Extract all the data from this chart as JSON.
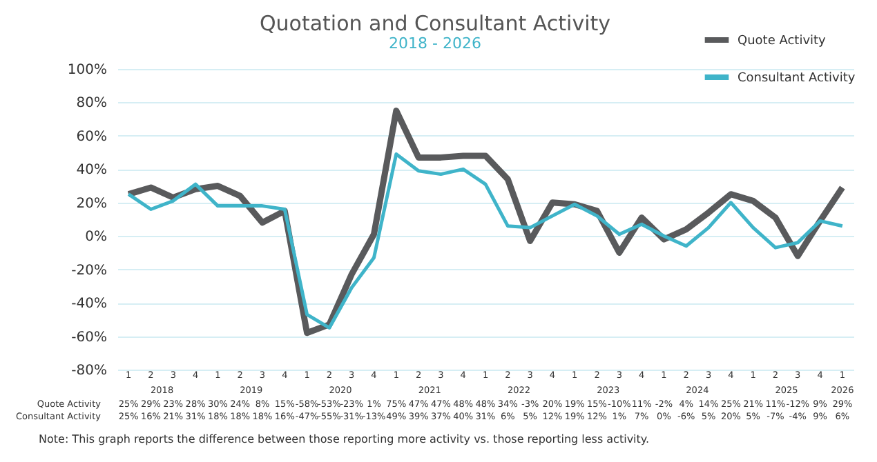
{
  "chart_data": {
    "type": "line",
    "title": "Quotation and Consultant Activity",
    "subtitle": "2018 - 2026",
    "categories": [
      "1",
      "2",
      "3",
      "4",
      "1",
      "2",
      "3",
      "4",
      "1",
      "2",
      "3",
      "4",
      "1",
      "2",
      "3",
      "4",
      "1",
      "2",
      "3",
      "4",
      "1",
      "2",
      "3",
      "4",
      "1",
      "2",
      "3",
      "4",
      "1",
      "2",
      "3",
      "4",
      "1"
    ],
    "series": [
      {
        "name": "Quote Activity",
        "color": "#595a5c",
        "values": [
          25,
          29,
          23,
          28,
          30,
          24,
          8,
          15,
          -58,
          -53,
          -23,
          1,
          75,
          47,
          47,
          48,
          48,
          34,
          -3,
          20,
          19,
          15,
          -10,
          11,
          -2,
          4,
          14,
          25,
          21,
          11,
          -12,
          9,
          29
        ],
        "value_labels": [
          "25%",
          "29%",
          "23%",
          "28%",
          "30%",
          "24%",
          "8%",
          "15%",
          "-58%",
          "-53%",
          "-23%",
          "1%",
          "75%",
          "47%",
          "47%",
          "48%",
          "48%",
          "34%",
          "-3%",
          "20%",
          "19%",
          "15%",
          "-10%",
          "11%",
          "-2%",
          "4%",
          "14%",
          "25%",
          "21%",
          "11%",
          "-12%",
          "9%",
          "29%"
        ]
      },
      {
        "name": "Consultant Activity",
        "color": "#3fb4c9",
        "values": [
          25,
          16,
          21,
          31,
          18,
          18,
          18,
          16,
          -47,
          -55,
          -31,
          -13,
          49,
          39,
          37,
          40,
          31,
          6,
          5,
          12,
          19,
          12,
          1,
          7,
          0,
          -6,
          5,
          20,
          5,
          -7,
          -4,
          9,
          6
        ],
        "value_labels": [
          "25%",
          "16%",
          "21%",
          "31%",
          "18%",
          "18%",
          "18%",
          "16%",
          "-47%",
          "-55%",
          "-31%",
          "-13%",
          "49%",
          "39%",
          "37%",
          "40%",
          "31%",
          "6%",
          "5%",
          "12%",
          "19%",
          "12%",
          "1%",
          "7%",
          "0%",
          "-6%",
          "5%",
          "20%",
          "5%",
          "-7%",
          "-4%",
          "9%",
          "6%"
        ]
      }
    ],
    "ylim": [
      -80,
      100
    ],
    "yticks": [
      {
        "value": -80,
        "label": "-80%"
      },
      {
        "value": -60,
        "label": "-60%"
      },
      {
        "value": -40,
        "label": "-40%"
      },
      {
        "value": -20,
        "label": "-20%"
      },
      {
        "value": 0,
        "label": "0%"
      },
      {
        "value": 20,
        "label": "20%"
      },
      {
        "value": 40,
        "label": "40%"
      },
      {
        "value": 60,
        "label": "60%"
      },
      {
        "value": 80,
        "label": "80%"
      },
      {
        "value": 100,
        "label": "100%"
      }
    ],
    "grid": "y",
    "legend": "top right",
    "data_labels": true,
    "marker": "none",
    "line_style": "solid",
    "annotations": [
      "2018",
      "2019",
      "2020",
      "2021",
      "2022",
      "2023",
      "2024",
      "2025",
      "2026",
      "Note: This graph reports the difference between those reporting more activity vs. those reporting less activity."
    ]
  }
}
